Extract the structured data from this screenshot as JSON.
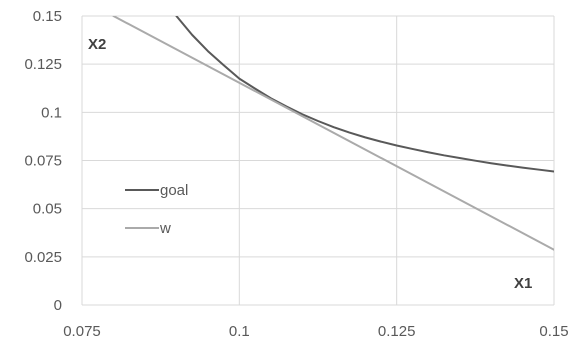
{
  "chart_data": {
    "type": "line",
    "title": "",
    "xlabel": "X1",
    "ylabel": "X2",
    "xlim": [
      0.075,
      0.15
    ],
    "ylim": [
      0,
      0.15
    ],
    "xticks": [
      "0.075",
      "0.1",
      "0.125",
      "0.15"
    ],
    "yticks": [
      "0",
      "0.025",
      "0.05",
      "0.075",
      "0.1",
      "0.125",
      "0.15"
    ],
    "grid": true,
    "legend_position": "left-middle",
    "series": [
      {
        "name": "goal",
        "color": "#595959",
        "x": [
          0.09,
          0.0925,
          0.095,
          0.0975,
          0.1,
          0.1025,
          0.105,
          0.1075,
          0.11,
          0.1125,
          0.115,
          0.1175,
          0.12,
          0.1225,
          0.125,
          0.1275,
          0.13,
          0.1325,
          0.135,
          0.1375,
          0.14,
          0.1425,
          0.145,
          0.1475,
          0.15
        ],
        "y": [
          0.15,
          0.1402,
          0.1318,
          0.1245,
          0.1175,
          0.1123,
          0.1073,
          0.103,
          0.099,
          0.0955,
          0.0923,
          0.0895,
          0.087,
          0.0848,
          0.0828,
          0.081,
          0.0793,
          0.0777,
          0.0763,
          0.0749,
          0.0736,
          0.0724,
          0.0713,
          0.0703,
          0.0693
        ]
      },
      {
        "name": "w",
        "color": "#aaaaaa",
        "x": [
          0.08,
          0.15
        ],
        "y": [
          0.15,
          0.0287
        ]
      }
    ]
  }
}
